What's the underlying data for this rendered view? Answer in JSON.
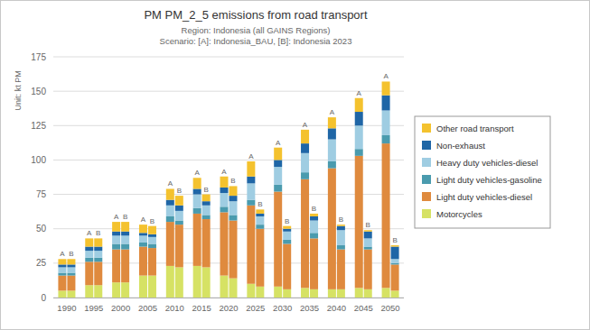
{
  "chart_data": {
    "type": "bar",
    "stacked": true,
    "title": "PM PM_2_5 emissions from road transport",
    "subtitle": [
      "Region: Indonesia (all GAINS Regions)",
      "Scenario: [A]: Indonesia_BAU, [B]: Indonesia 2023"
    ],
    "y_label": "Unit: kt PM",
    "categories": [
      "1990",
      "1995",
      "2000",
      "2005",
      "2010",
      "2015",
      "2020",
      "2025",
      "2030",
      "2035",
      "2040",
      "2045",
      "2050"
    ],
    "groups": [
      "A",
      "B"
    ],
    "ylim": [
      0,
      175
    ],
    "yticks": [
      0,
      25,
      50,
      75,
      100,
      125,
      150,
      175
    ],
    "grid": true,
    "legend": "right",
    "series": [
      {
        "name": "Motorcycles",
        "color": "#d6e264",
        "values": [
          [
            5,
            5
          ],
          [
            9,
            9
          ],
          [
            11,
            11
          ],
          [
            16,
            16
          ],
          [
            23,
            22
          ],
          [
            23,
            22
          ],
          [
            16,
            14
          ],
          [
            10,
            8
          ],
          [
            8,
            6
          ],
          [
            7,
            6
          ],
          [
            6,
            6
          ],
          [
            7,
            6
          ],
          [
            7,
            5
          ]
        ]
      },
      {
        "name": "Light duty vehicles-diesel",
        "color": "#df8a3e",
        "values": [
          [
            11,
            11
          ],
          [
            17,
            17
          ],
          [
            24,
            24
          ],
          [
            21,
            20
          ],
          [
            32,
            31
          ],
          [
            38,
            35
          ],
          [
            46,
            42
          ],
          [
            57,
            42
          ],
          [
            69,
            33
          ],
          [
            79,
            37
          ],
          [
            88,
            29
          ],
          [
            96,
            29
          ],
          [
            105,
            19
          ]
        ]
      },
      {
        "name": "Light duty vehicles-gasoline",
        "color": "#4a9bae",
        "values": [
          [
            2,
            2
          ],
          [
            3,
            3
          ],
          [
            4,
            4
          ],
          [
            3,
            3
          ],
          [
            4,
            3
          ],
          [
            4,
            3
          ],
          [
            4,
            4
          ],
          [
            4,
            3
          ],
          [
            5,
            3
          ],
          [
            5,
            4
          ],
          [
            5,
            3
          ],
          [
            5,
            2
          ],
          [
            6,
            1
          ]
        ]
      },
      {
        "name": "Heavy duty vehicles-diesel",
        "color": "#9fcde2",
        "values": [
          [
            4,
            4
          ],
          [
            5,
            5
          ],
          [
            6,
            6
          ],
          [
            5,
            5
          ],
          [
            8,
            7
          ],
          [
            10,
            7
          ],
          [
            10,
            10
          ],
          [
            12,
            6
          ],
          [
            13,
            6
          ],
          [
            14,
            9
          ],
          [
            16,
            11
          ],
          [
            17,
            6
          ],
          [
            18,
            3
          ]
        ]
      },
      {
        "name": "Non-exhaust",
        "color": "#1f66a6",
        "values": [
          [
            2,
            2
          ],
          [
            3,
            3
          ],
          [
            3,
            3
          ],
          [
            2,
            2
          ],
          [
            4,
            4
          ],
          [
            4,
            3
          ],
          [
            4,
            4
          ],
          [
            5,
            2
          ],
          [
            5,
            2
          ],
          [
            7,
            3
          ],
          [
            8,
            3
          ],
          [
            10,
            5
          ],
          [
            11,
            9
          ]
        ]
      },
      {
        "name": "Other road transport",
        "color": "#f4c22e",
        "values": [
          [
            4,
            4
          ],
          [
            6,
            6
          ],
          [
            7,
            7
          ],
          [
            6,
            6
          ],
          [
            8,
            7
          ],
          [
            8,
            5
          ],
          [
            8,
            7
          ],
          [
            11,
            3
          ],
          [
            9,
            2
          ],
          [
            10,
            2
          ],
          [
            8,
            1
          ],
          [
            10,
            1
          ],
          [
            10,
            1
          ]
        ]
      }
    ]
  }
}
